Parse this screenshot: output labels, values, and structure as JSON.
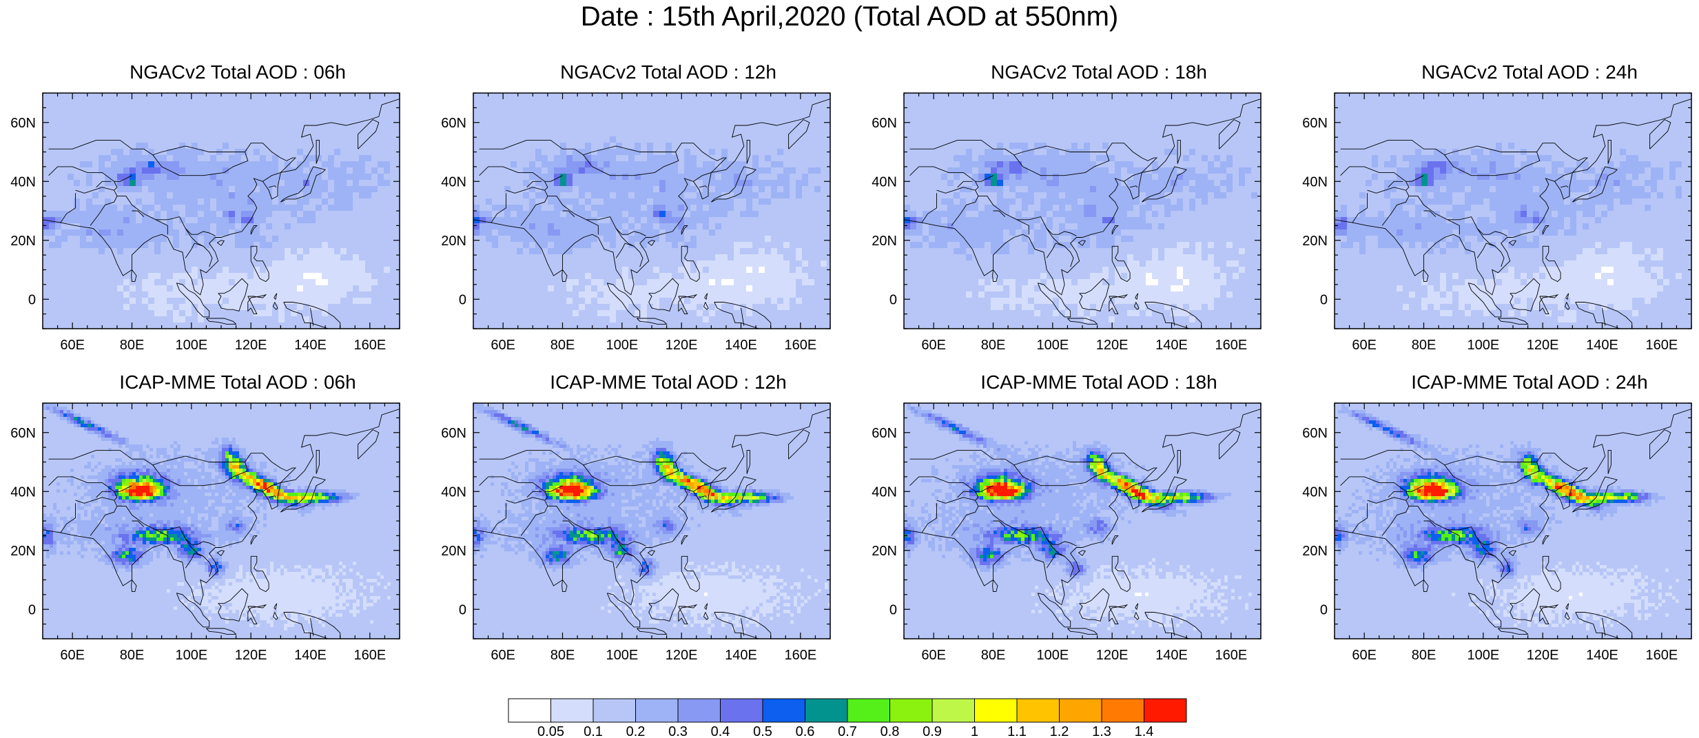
{
  "title": "Date : 15th April,2020 (Total AOD at 550nm)",
  "map": {
    "lon_range": [
      50,
      170
    ],
    "lat_range": [
      -10,
      70
    ],
    "x_ticks": [
      60,
      80,
      100,
      120,
      140,
      160
    ],
    "x_tick_labels": [
      "60E",
      "80E",
      "100E",
      "120E",
      "140E",
      "160E"
    ],
    "y_ticks": [
      0,
      20,
      40,
      60
    ],
    "y_tick_labels": [
      "0",
      "20N",
      "40N",
      "60N"
    ],
    "land_outline_color": "#000000"
  },
  "panels": [
    {
      "id": "ngac-06",
      "title": "NGACv2 Total AOD : 06h",
      "model": "NGACv2",
      "hour": 6
    },
    {
      "id": "ngac-12",
      "title": "NGACv2 Total AOD : 12h",
      "model": "NGACv2",
      "hour": 12
    },
    {
      "id": "ngac-18",
      "title": "NGACv2 Total AOD : 18h",
      "model": "NGACv2",
      "hour": 18
    },
    {
      "id": "ngac-24",
      "title": "NGACv2 Total AOD : 24h",
      "model": "NGACv2",
      "hour": 24
    },
    {
      "id": "icap-06",
      "title": "ICAP-MME Total AOD : 06h",
      "model": "ICAP-MME",
      "hour": 6
    },
    {
      "id": "icap-12",
      "title": "ICAP-MME Total AOD : 12h",
      "model": "ICAP-MME",
      "hour": 12
    },
    {
      "id": "icap-18",
      "title": "ICAP-MME Total AOD : 18h",
      "model": "ICAP-MME",
      "hour": 18
    },
    {
      "id": "icap-24",
      "title": "ICAP-MME Total AOD : 24h",
      "model": "ICAP-MME",
      "hour": 24
    }
  ],
  "colorbar": {
    "labels": [
      "0.05",
      "0.1",
      "0.2",
      "0.3",
      "0.4",
      "0.5",
      "0.6",
      "0.7",
      "0.8",
      "0.9",
      "1",
      "1.1",
      "1.2",
      "1.3",
      "1.4"
    ],
    "levels": [
      0.05,
      0.1,
      0.2,
      0.3,
      0.4,
      0.5,
      0.6,
      0.7,
      0.8,
      0.9,
      1.0,
      1.1,
      1.2,
      1.3,
      1.4
    ],
    "colors": [
      "#ffffff",
      "#d4ddfb",
      "#b7c6f7",
      "#9eb3f5",
      "#8899f3",
      "#6b72ee",
      "#0c5fef",
      "#03938f",
      "#55f019",
      "#8bf20f",
      "#bff749",
      "#ffff00",
      "#ffc300",
      "#ffa500",
      "#ff7a00",
      "#ff1a00"
    ]
  }
}
